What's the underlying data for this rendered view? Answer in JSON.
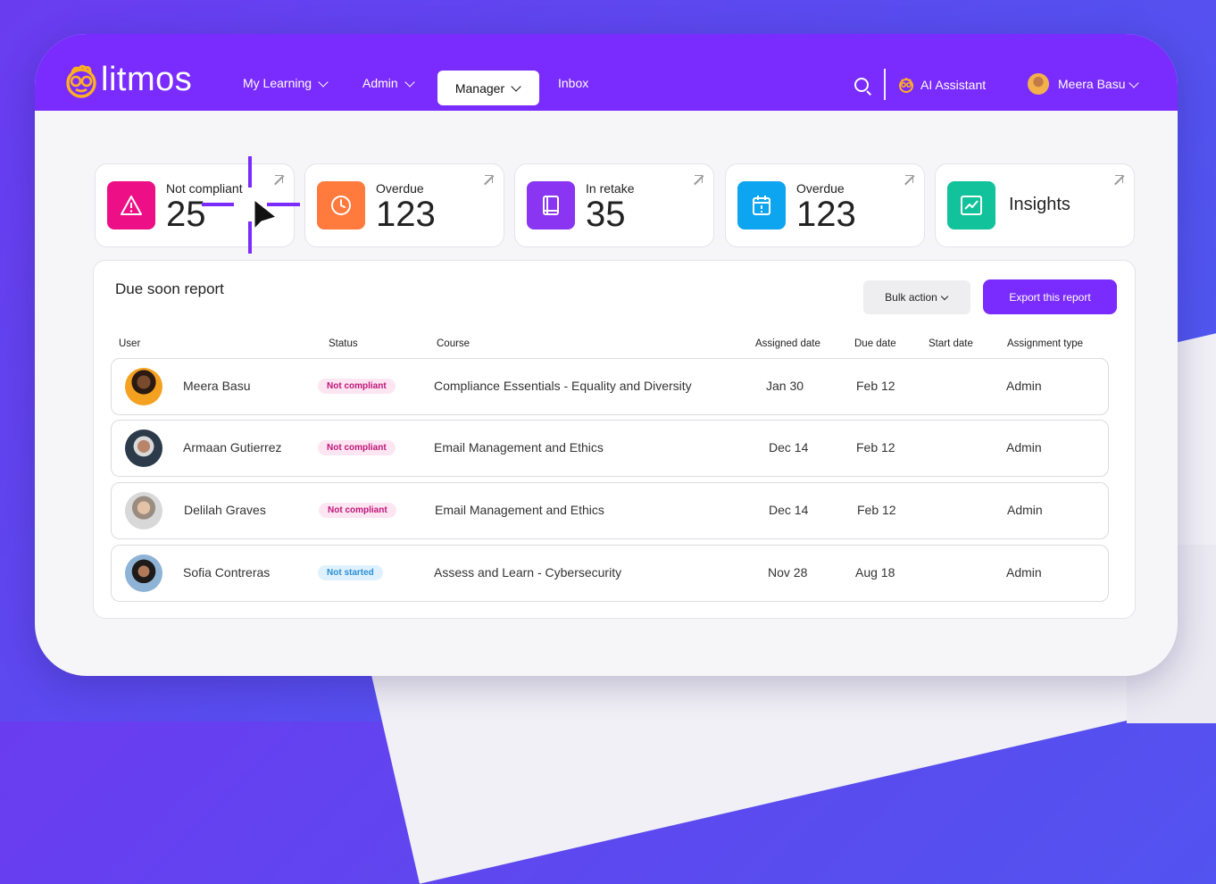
{
  "brand": {
    "name": "litmos",
    "primary": "#7a2cff"
  },
  "nav": {
    "items": [
      {
        "label": "My Learning",
        "has_dropdown": true
      },
      {
        "label": "Admin",
        "has_dropdown": true
      },
      {
        "label": "Manager",
        "has_dropdown": true,
        "active": true
      },
      {
        "label": "Inbox",
        "has_dropdown": false
      }
    ],
    "ai_label": "AI Assistant",
    "user_name": "Meera Basu"
  },
  "cards": [
    {
      "label": "Not compliant",
      "value": "25",
      "icon": "warning-icon",
      "color": "#ec0f86"
    },
    {
      "label": "Overdue",
      "value": "123",
      "icon": "clock-icon",
      "color": "#ff7a3d"
    },
    {
      "label": "In retake",
      "value": "35",
      "icon": "book-icon",
      "color": "#8a35f2"
    },
    {
      "label": "Overdue",
      "value": "123",
      "icon": "calendar-alert-icon",
      "color": "#0ea5f0"
    },
    {
      "label": "Insights",
      "icon": "chart-icon",
      "color": "#12c29a"
    }
  ],
  "report": {
    "title": "Due soon report",
    "bulk_label": "Bulk action",
    "export_label": "Export this report",
    "columns": [
      "User",
      "Status",
      "Course",
      "Assigned date",
      "Due date",
      "Start date",
      "Assignment type"
    ],
    "rows": [
      {
        "user": "Meera Basu",
        "status": "Not compliant",
        "course": "Compliance Essentials - Equality and Diversity",
        "assigned": "Jan 30",
        "due": "Feb 12",
        "start": "",
        "type": "Admin"
      },
      {
        "user": "Armaan Gutierrez",
        "status": "Not compliant",
        "course": "Email Management and Ethics",
        "assigned": "Dec 14",
        "due": "Feb 12",
        "start": "",
        "type": "Admin"
      },
      {
        "user": "Delilah Graves",
        "status": "Not compliant",
        "course": "Email Management and Ethics",
        "assigned": "Dec 14",
        "due": "Feb 12",
        "start": "",
        "type": "Admin"
      },
      {
        "user": "Sofia Contreras",
        "status": "Not started",
        "course": "Assess and Learn - Cybersecurity",
        "assigned": "Nov 28",
        "due": "Aug 18",
        "start": "",
        "type": "Admin"
      }
    ]
  }
}
